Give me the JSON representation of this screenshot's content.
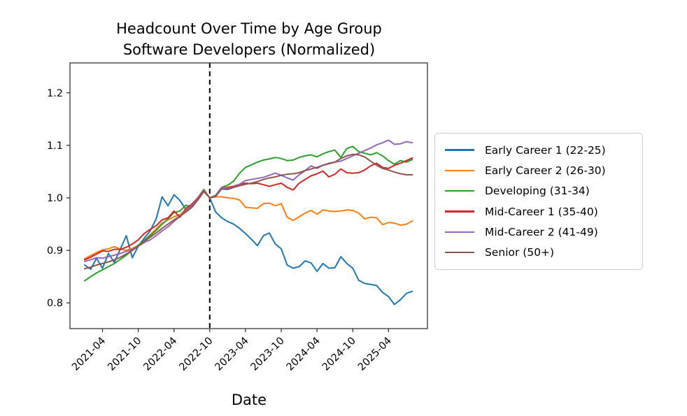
{
  "figure": {
    "title_line1": "Headcount Over Time by Age Group",
    "title_line2": "Software Developers (Normalized)",
    "xlabel": "Date"
  },
  "chart_data": {
    "type": "line",
    "title": "Headcount Over Time by Age Group",
    "subtitle": "Software Developers (Normalized)",
    "xlabel": "Date",
    "ylabel": "",
    "grid": false,
    "legend_position": "right",
    "ylim": [
      0.751,
      1.257
    ],
    "xlim_months": [
      -2.46,
      57.54
    ],
    "y_ticks": [
      0.8,
      0.9,
      1.0,
      1.1,
      1.2
    ],
    "x_ticks": [
      "2021-04",
      "2021-10",
      "2022-04",
      "2022-10",
      "2023-04",
      "2023-10",
      "2024-04",
      "2024-10",
      "2025-04"
    ],
    "event_line": {
      "month": "2022-10",
      "style": "dashed",
      "color": "#000000"
    },
    "x": [
      "2021-01",
      "2021-02",
      "2021-03",
      "2021-04",
      "2021-05",
      "2021-06",
      "2021-07",
      "2021-08",
      "2021-09",
      "2021-10",
      "2021-11",
      "2021-12",
      "2022-01",
      "2022-02",
      "2022-03",
      "2022-04",
      "2022-05",
      "2022-06",
      "2022-07",
      "2022-08",
      "2022-09",
      "2022-10",
      "2022-11",
      "2022-12",
      "2023-01",
      "2023-02",
      "2023-03",
      "2023-04",
      "2023-05",
      "2023-06",
      "2023-07",
      "2023-08",
      "2023-09",
      "2023-10",
      "2023-11",
      "2023-12",
      "2024-01",
      "2024-02",
      "2024-03",
      "2024-04",
      "2024-05",
      "2024-06",
      "2024-07",
      "2024-08",
      "2024-09",
      "2024-10",
      "2024-11",
      "2024-12",
      "2025-01",
      "2025-02",
      "2025-03",
      "2025-04",
      "2025-05",
      "2025-06",
      "2025-07",
      "2025-08"
    ],
    "series": [
      {
        "name": "Early Career 1 (22-25)",
        "color": "#1f77b4",
        "values": [
          0.872,
          0.864,
          0.885,
          0.866,
          0.894,
          0.877,
          0.903,
          0.928,
          0.886,
          0.908,
          0.923,
          0.937,
          0.96,
          1.002,
          0.985,
          1.006,
          0.995,
          0.978,
          0.988,
          1.0,
          1.014,
          1.0,
          0.973,
          0.962,
          0.955,
          0.95,
          0.942,
          0.932,
          0.921,
          0.909,
          0.928,
          0.933,
          0.912,
          0.903,
          0.872,
          0.866,
          0.869,
          0.88,
          0.876,
          0.86,
          0.875,
          0.866,
          0.867,
          0.888,
          0.875,
          0.866,
          0.843,
          0.837,
          0.835,
          0.833,
          0.82,
          0.812,
          0.797,
          0.806,
          0.818,
          0.822
        ]
      },
      {
        "name": "Early Career 2 (26-30)",
        "color": "#ff7f0e",
        "values": [
          0.884,
          0.89,
          0.896,
          0.901,
          0.903,
          0.907,
          0.902,
          0.9,
          0.904,
          0.909,
          0.919,
          0.93,
          0.941,
          0.952,
          0.958,
          0.964,
          0.968,
          0.977,
          0.985,
          1.0,
          1.015,
          1.0,
          1.002,
          1.002,
          1.0,
          0.999,
          0.996,
          0.982,
          0.981,
          0.98,
          0.989,
          0.99,
          0.985,
          0.989,
          0.963,
          0.957,
          0.964,
          0.971,
          0.976,
          0.969,
          0.977,
          0.975,
          0.974,
          0.975,
          0.977,
          0.976,
          0.971,
          0.96,
          0.963,
          0.962,
          0.949,
          0.953,
          0.952,
          0.948,
          0.95,
          0.956
        ]
      },
      {
        "name": "Developing (31-34)",
        "color": "#2ca02c",
        "values": [
          0.842,
          0.85,
          0.857,
          0.863,
          0.869,
          0.875,
          0.883,
          0.891,
          0.9,
          0.91,
          0.919,
          0.928,
          0.938,
          0.95,
          0.96,
          0.972,
          0.975,
          0.986,
          0.982,
          1.0,
          1.016,
          1.0,
          1.005,
          1.02,
          1.024,
          1.032,
          1.047,
          1.058,
          1.063,
          1.068,
          1.072,
          1.074,
          1.077,
          1.075,
          1.071,
          1.072,
          1.077,
          1.08,
          1.082,
          1.078,
          1.084,
          1.088,
          1.091,
          1.077,
          1.094,
          1.098,
          1.088,
          1.085,
          1.082,
          1.086,
          1.08,
          1.071,
          1.064,
          1.071,
          1.068,
          1.073
        ]
      },
      {
        "name": "Mid-Career 1 (35-40)",
        "color": "#d62728",
        "values": [
          0.882,
          0.887,
          0.893,
          0.899,
          0.898,
          0.902,
          0.902,
          0.906,
          0.912,
          0.92,
          0.932,
          0.94,
          0.947,
          0.958,
          0.962,
          0.975,
          0.963,
          0.98,
          0.988,
          1.0,
          1.014,
          1.0,
          1.003,
          1.018,
          1.02,
          1.022,
          1.026,
          1.028,
          1.027,
          1.028,
          1.025,
          1.022,
          1.025,
          1.028,
          1.02,
          1.015,
          1.028,
          1.035,
          1.042,
          1.046,
          1.051,
          1.04,
          1.045,
          1.055,
          1.048,
          1.047,
          1.048,
          1.053,
          1.061,
          1.066,
          1.058,
          1.056,
          1.062,
          1.066,
          1.071,
          1.076
        ]
      },
      {
        "name": "Mid-Career 2 (41-49)",
        "color": "#9467bd",
        "values": [
          0.879,
          0.882,
          0.886,
          0.885,
          0.888,
          0.891,
          0.894,
          0.898,
          0.902,
          0.908,
          0.915,
          0.92,
          0.928,
          0.937,
          0.945,
          0.955,
          0.965,
          0.975,
          0.985,
          0.998,
          1.013,
          1.0,
          1.004,
          1.02,
          1.018,
          1.02,
          1.026,
          1.033,
          1.035,
          1.037,
          1.039,
          1.043,
          1.047,
          1.043,
          1.038,
          1.034,
          1.044,
          1.052,
          1.061,
          1.056,
          1.062,
          1.066,
          1.068,
          1.07,
          1.075,
          1.08,
          1.085,
          1.09,
          1.095,
          1.101,
          1.105,
          1.11,
          1.102,
          1.103,
          1.107,
          1.105
        ]
      },
      {
        "name": "Senior (50+)",
        "color": "#8c564b",
        "values": [
          0.865,
          0.868,
          0.872,
          0.875,
          0.878,
          0.882,
          0.887,
          0.893,
          0.9,
          0.908,
          0.917,
          0.925,
          0.933,
          0.942,
          0.95,
          0.958,
          0.965,
          0.973,
          0.982,
          0.996,
          1.012,
          1.0,
          1.003,
          1.017,
          1.016,
          1.02,
          1.023,
          1.026,
          1.028,
          1.031,
          1.035,
          1.038,
          1.04,
          1.043,
          1.045,
          1.046,
          1.048,
          1.052,
          1.055,
          1.058,
          1.062,
          1.065,
          1.068,
          1.075,
          1.08,
          1.083,
          1.082,
          1.078,
          1.07,
          1.062,
          1.056,
          1.053,
          1.049,
          1.046,
          1.044,
          1.044
        ]
      }
    ]
  }
}
